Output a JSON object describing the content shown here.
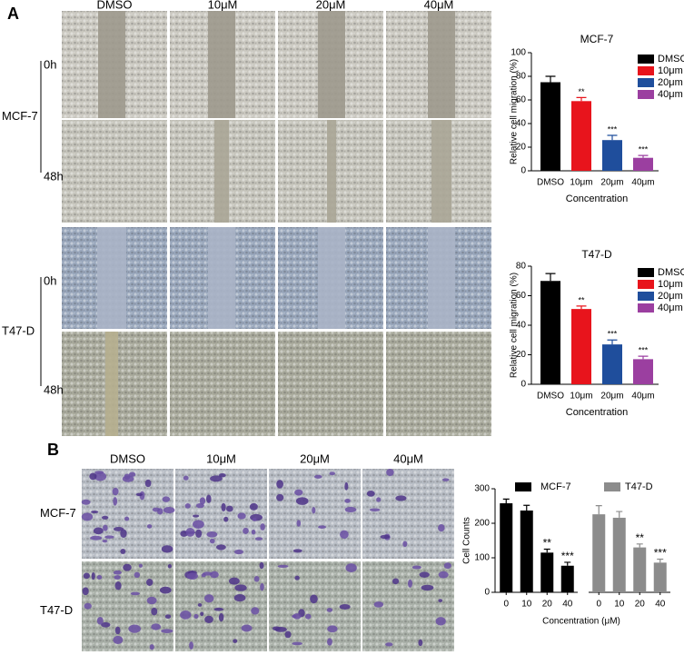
{
  "panel_a": {
    "label": "A",
    "columns": [
      "DMSO",
      "10μM",
      "20μM",
      "40μM"
    ],
    "rows": [
      {
        "cell_line": "MCF-7",
        "times": [
          "0h",
          "48h"
        ]
      },
      {
        "cell_line": "T47-D",
        "times": [
          "0h",
          "48h"
        ]
      }
    ]
  },
  "panel_b": {
    "label": "B",
    "columns": [
      "DMSO",
      "10μM",
      "20μM",
      "40μM"
    ],
    "rows": [
      "MCF-7",
      "T47-D"
    ]
  },
  "chart_data": [
    {
      "type": "bar",
      "title": "MCF-7",
      "y_label": "Relative cell migration (%)",
      "x_label": "Concentration",
      "categories": [
        "DMSO",
        "10μm",
        "20μm",
        "40μm"
      ],
      "values": [
        75,
        59,
        26,
        11
      ],
      "errors": [
        5,
        3,
        4,
        2
      ],
      "significance": [
        null,
        "**",
        "***",
        "***"
      ],
      "colors": [
        "#000000",
        "#e8141c",
        "#1f4e9c",
        "#9b3fa0"
      ],
      "ylim": [
        0,
        100
      ],
      "yticks": [
        0,
        20,
        40,
        60,
        80,
        100
      ],
      "legend": "right"
    },
    {
      "type": "bar",
      "title": "T47-D",
      "y_label": "Relative cell migration (%)",
      "x_label": "Concentration",
      "categories": [
        "DMSO",
        "10μm",
        "20μm",
        "40μm"
      ],
      "values": [
        70,
        51,
        27,
        17
      ],
      "errors": [
        5,
        2,
        3,
        2
      ],
      "significance": [
        null,
        "**",
        "***",
        "***"
      ],
      "colors": [
        "#000000",
        "#e8141c",
        "#1f4e9c",
        "#9b3fa0"
      ],
      "ylim": [
        0,
        80
      ],
      "yticks": [
        0,
        20,
        40,
        60,
        80
      ],
      "legend": "right"
    },
    {
      "type": "grouped_bar",
      "y_label": "Cell Counts",
      "x_label": "Concentration (μM)",
      "categories": [
        "0",
        "10",
        "20",
        "40"
      ],
      "series": [
        {
          "name": "MCF-7",
          "color": "#000000",
          "values": [
            258,
            237,
            115,
            77
          ],
          "errors": [
            12,
            15,
            10,
            10
          ],
          "significance": [
            null,
            null,
            "**",
            "***"
          ]
        },
        {
          "name": "T47-D",
          "color": "#8c8c8c",
          "values": [
            226,
            216,
            130,
            86
          ],
          "errors": [
            25,
            18,
            10,
            10
          ],
          "significance": [
            null,
            null,
            "**",
            "***"
          ]
        }
      ],
      "ylim": [
        0,
        300
      ],
      "yticks": [
        0,
        100,
        200,
        300
      ],
      "legend": "top"
    }
  ]
}
